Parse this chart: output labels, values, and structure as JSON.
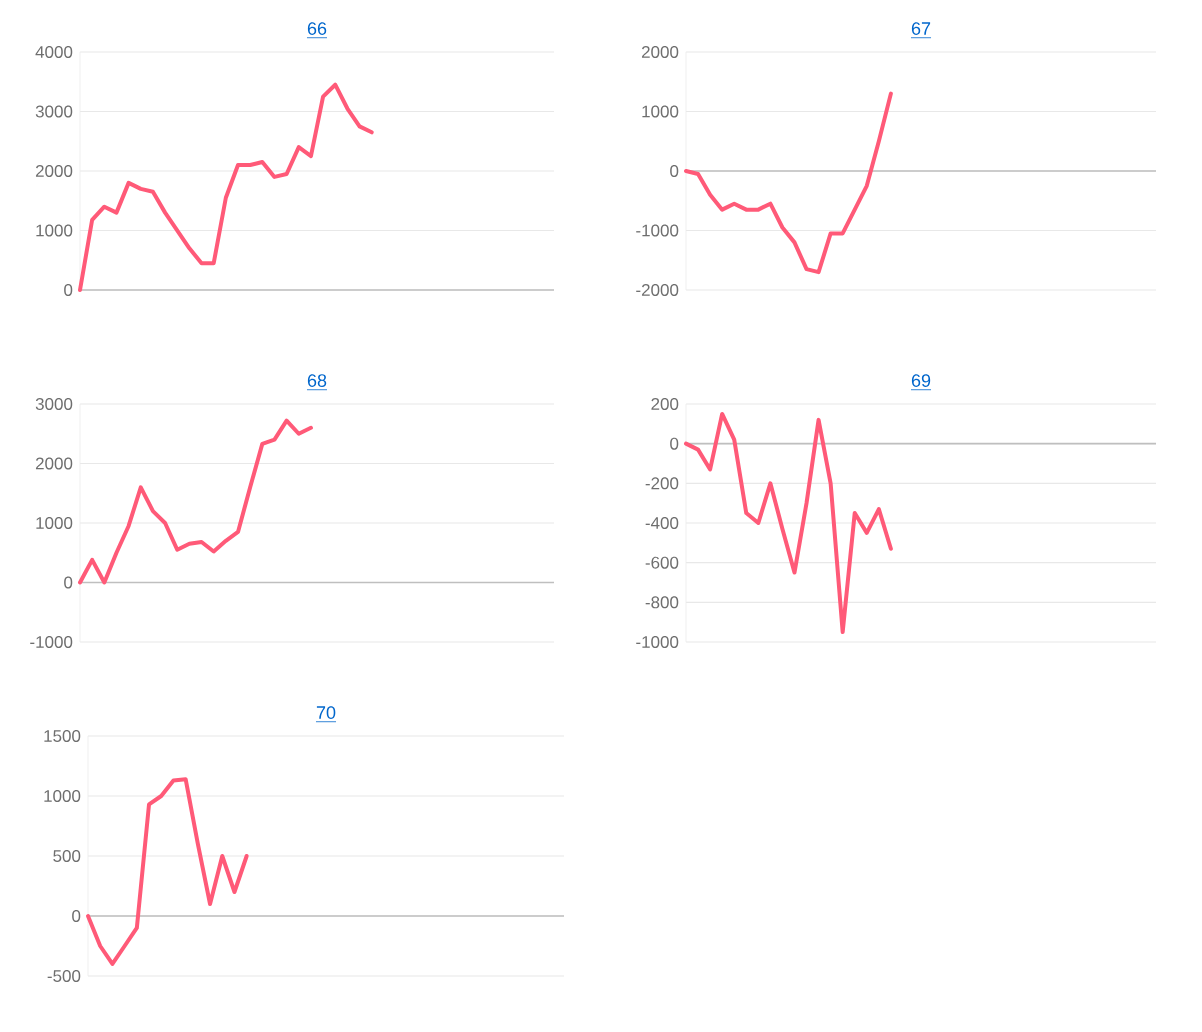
{
  "chart_data": [
    {
      "type": "line",
      "title": "66",
      "categories": [
        null,
        null,
        null,
        null,
        null,
        null,
        null,
        null,
        null,
        null,
        null,
        null,
        null,
        null,
        null,
        null,
        null,
        null,
        null,
        null,
        null,
        null,
        null,
        null,
        null,
        null,
        null,
        null,
        null,
        null,
        null,
        null,
        null,
        null,
        null,
        null,
        null,
        null,
        null,
        null
      ],
      "values": [
        0,
        1180,
        1400,
        1300,
        1800,
        1700,
        1650,
        1300,
        1000,
        700,
        450,
        450,
        1550,
        2100,
        2100,
        2150,
        1900,
        1950,
        2400,
        2250,
        3250,
        3450,
        3050,
        2750,
        2650,
        null,
        null,
        null,
        null,
        null,
        null,
        null,
        null,
        null,
        null,
        null,
        null,
        null,
        null,
        null
      ],
      "color": "#ff5a78",
      "ylim": [
        0,
        4000
      ],
      "yticks": [
        0,
        1000,
        2000,
        3000,
        4000
      ],
      "grid": "y",
      "tick_labels": "y",
      "marker": "none"
    },
    {
      "type": "line",
      "title": "67",
      "categories": [
        null,
        null,
        null,
        null,
        null,
        null,
        null,
        null,
        null,
        null,
        null,
        null,
        null,
        null,
        null,
        null,
        null,
        null,
        null,
        null,
        null,
        null,
        null,
        null,
        null,
        null,
        null,
        null,
        null,
        null,
        null,
        null,
        null,
        null,
        null,
        null,
        null,
        null,
        null,
        null
      ],
      "values": [
        0,
        -50,
        -400,
        -650,
        -550,
        -650,
        -650,
        -550,
        -950,
        -1200,
        -1650,
        -1700,
        -1050,
        -1050,
        -650,
        -250,
        500,
        1300,
        null,
        null,
        null,
        null,
        null,
        null,
        null,
        null,
        null,
        null,
        null,
        null,
        null,
        null,
        null,
        null,
        null,
        null,
        null,
        null,
        null,
        null
      ],
      "color": "#ff5a78",
      "ylim": [
        -2000,
        2000
      ],
      "yticks": [
        -2000,
        -1000,
        0,
        1000,
        2000
      ],
      "grid": "y",
      "tick_labels": "y",
      "marker": "none"
    },
    {
      "type": "line",
      "title": "68",
      "categories": [
        null,
        null,
        null,
        null,
        null,
        null,
        null,
        null,
        null,
        null,
        null,
        null,
        null,
        null,
        null,
        null,
        null,
        null,
        null,
        null,
        null,
        null,
        null,
        null,
        null,
        null,
        null,
        null,
        null,
        null,
        null,
        null,
        null,
        null,
        null,
        null,
        null,
        null,
        null,
        null
      ],
      "values": [
        0,
        380,
        0,
        500,
        950,
        1600,
        1200,
        1000,
        550,
        650,
        680,
        520,
        700,
        850,
        1600,
        2330,
        2400,
        2720,
        2500,
        2600,
        null,
        null,
        null,
        null,
        null,
        null,
        null,
        null,
        null,
        null,
        null,
        null,
        null,
        null,
        null,
        null,
        null,
        null,
        null,
        null
      ],
      "color": "#ff5a78",
      "ylim": [
        -1000,
        3000
      ],
      "yticks": [
        -1000,
        0,
        1000,
        2000,
        3000
      ],
      "grid": "y",
      "tick_labels": "y",
      "marker": "none"
    },
    {
      "type": "line",
      "title": "69",
      "categories": [
        null,
        null,
        null,
        null,
        null,
        null,
        null,
        null,
        null,
        null,
        null,
        null,
        null,
        null,
        null,
        null,
        null,
        null,
        null,
        null,
        null,
        null,
        null,
        null,
        null,
        null,
        null,
        null,
        null,
        null,
        null,
        null,
        null,
        null,
        null,
        null,
        null,
        null,
        null,
        null
      ],
      "values": [
        0,
        -30,
        -130,
        150,
        20,
        -350,
        -400,
        -200,
        -430,
        -650,
        -300,
        120,
        -200,
        -950,
        -350,
        -450,
        -330,
        -530,
        null,
        null,
        null,
        null,
        null,
        null,
        null,
        null,
        null,
        null,
        null,
        null,
        null,
        null,
        null,
        null,
        null,
        null,
        null,
        null,
        null,
        null
      ],
      "color": "#ff5a78",
      "ylim": [
        -1000,
        200
      ],
      "yticks": [
        -1000,
        -800,
        -600,
        -400,
        -200,
        0,
        200
      ],
      "grid": "y",
      "tick_labels": "y",
      "marker": "none"
    },
    {
      "type": "line",
      "title": "70",
      "categories": [
        null,
        null,
        null,
        null,
        null,
        null,
        null,
        null,
        null,
        null,
        null,
        null,
        null,
        null,
        null,
        null,
        null,
        null,
        null,
        null,
        null,
        null,
        null,
        null,
        null,
        null,
        null,
        null,
        null,
        null,
        null,
        null,
        null,
        null,
        null,
        null,
        null,
        null,
        null,
        null
      ],
      "values": [
        0,
        -250,
        -400,
        -250,
        -100,
        930,
        1000,
        1130,
        1140,
        600,
        100,
        500,
        200,
        500,
        null,
        null,
        null,
        null,
        null,
        null,
        null,
        null,
        null,
        null,
        null,
        null,
        null,
        null,
        null,
        null,
        null,
        null,
        null,
        null,
        null,
        null,
        null,
        null,
        null,
        null
      ],
      "color": "#ff5a78",
      "ylim": [
        -500,
        1500
      ],
      "yticks": [
        -500,
        0,
        500,
        1000,
        1500
      ],
      "grid": "y",
      "tick_labels": "y",
      "marker": "none"
    }
  ]
}
